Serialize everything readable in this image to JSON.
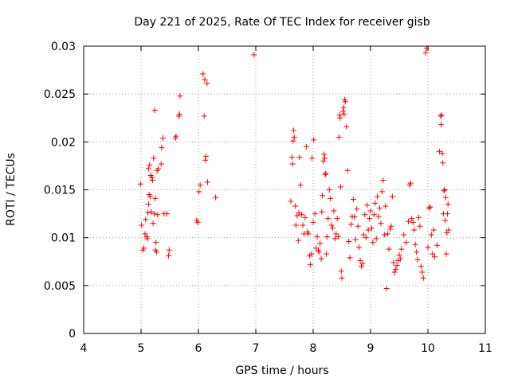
{
  "chart_data": {
    "type": "scatter",
    "title": "Day 221 of 2025, Rate Of TEC Index for receiver gisb",
    "xlabel": "GPS time / hours",
    "ylabel": "ROTI / TECUs",
    "xlim": [
      4,
      11
    ],
    "ylim": [
      0,
      0.03
    ],
    "xticks": [
      "4",
      "5",
      "6",
      "7",
      "8",
      "9",
      "10",
      "11"
    ],
    "yticks": [
      "0",
      "0.005",
      "0.01",
      "0.015",
      "0.02",
      "0.025",
      "0.03"
    ],
    "grid": true,
    "marker": "+",
    "color": "#ff0000",
    "series": [
      {
        "name": "ROTI",
        "points": [
          [
            4.99,
            0.0156
          ],
          [
            5.01,
            0.0113
          ],
          [
            5.03,
            0.0087
          ],
          [
            5.05,
            0.0089
          ],
          [
            5.07,
            0.0104
          ],
          [
            5.08,
            0.0119
          ],
          [
            5.1,
            0.0101
          ],
          [
            5.11,
            0.0099
          ],
          [
            5.12,
            0.0126
          ],
          [
            5.13,
            0.0135
          ],
          [
            5.13,
            0.0172
          ],
          [
            5.14,
            0.0145
          ],
          [
            5.15,
            0.0176
          ],
          [
            5.16,
            0.0143
          ],
          [
            5.17,
            0.0165
          ],
          [
            5.18,
            0.0127
          ],
          [
            5.19,
            0.0163
          ],
          [
            5.2,
            0.016
          ],
          [
            5.21,
            0.0115
          ],
          [
            5.22,
            0.0183
          ],
          [
            5.23,
            0.0125
          ],
          [
            5.24,
            0.0233
          ],
          [
            5.25,
            0.0087
          ],
          [
            5.25,
            0.0141
          ],
          [
            5.26,
            0.0095
          ],
          [
            5.27,
            0.0085
          ],
          [
            5.28,
            0.017
          ],
          [
            5.29,
            0.0124
          ],
          [
            5.3,
            0.0172
          ],
          [
            5.35,
            0.0177
          ],
          [
            5.36,
            0.0194
          ],
          [
            5.38,
            0.0204
          ],
          [
            5.4,
            0.0125
          ],
          [
            5.45,
            0.0125
          ],
          [
            5.48,
            0.0081
          ],
          [
            5.49,
            0.0087
          ],
          [
            5.6,
            0.0204
          ],
          [
            5.61,
            0.0206
          ],
          [
            5.66,
            0.0227
          ],
          [
            5.67,
            0.0229
          ],
          [
            5.68,
            0.0248
          ],
          [
            5.97,
            0.0118
          ],
          [
            5.99,
            0.0116
          ],
          [
            6.01,
            0.0148
          ],
          [
            6.03,
            0.0155
          ],
          [
            6.08,
            0.0271
          ],
          [
            6.1,
            0.0227
          ],
          [
            6.11,
            0.0265
          ],
          [
            6.12,
            0.0181
          ],
          [
            6.13,
            0.0185
          ],
          [
            6.15,
            0.0261
          ],
          [
            6.16,
            0.0158
          ],
          [
            6.3,
            0.0142
          ],
          [
            6.97,
            0.0291
          ],
          [
            7.61,
            0.0138
          ],
          [
            7.63,
            0.0184
          ],
          [
            7.64,
            0.0177
          ],
          [
            7.65,
            0.0201
          ],
          [
            7.66,
            0.0212
          ],
          [
            7.67,
            0.0205
          ],
          [
            7.69,
            0.0133
          ],
          [
            7.7,
            0.0113
          ],
          [
            7.72,
            0.0123
          ],
          [
            7.74,
            0.0097
          ],
          [
            7.75,
            0.0126
          ],
          [
            7.76,
            0.0184
          ],
          [
            7.78,
            0.0155
          ],
          [
            7.8,
            0.0124
          ],
          [
            7.82,
            0.0113
          ],
          [
            7.84,
            0.0104
          ],
          [
            7.86,
            0.0121
          ],
          [
            7.88,
            0.0195
          ],
          [
            7.9,
            0.0106
          ],
          [
            7.92,
            0.0104
          ],
          [
            7.94,
            0.0081
          ],
          [
            7.95,
            0.0072
          ],
          [
            7.97,
            0.0083
          ],
          [
            7.98,
            0.0183
          ],
          [
            8.0,
            0.0116
          ],
          [
            8.01,
            0.0202
          ],
          [
            8.03,
            0.0125
          ],
          [
            8.05,
            0.0089
          ],
          [
            8.07,
            0.0101
          ],
          [
            8.09,
            0.0087
          ],
          [
            8.1,
            0.0085
          ],
          [
            8.12,
            0.0094
          ],
          [
            8.14,
            0.0078
          ],
          [
            8.15,
            0.0127
          ],
          [
            8.16,
            0.0144
          ],
          [
            8.18,
            0.018
          ],
          [
            8.19,
            0.0187
          ],
          [
            8.2,
            0.0183
          ],
          [
            8.21,
            0.0166
          ],
          [
            8.22,
            0.0167
          ],
          [
            8.23,
            0.0083
          ],
          [
            8.24,
            0.0101
          ],
          [
            8.26,
            0.012
          ],
          [
            8.28,
            0.015
          ],
          [
            8.3,
            0.0141
          ],
          [
            8.32,
            0.0113
          ],
          [
            8.34,
            0.011
          ],
          [
            8.36,
            0.0128
          ],
          [
            8.38,
            0.0099
          ],
          [
            8.4,
            0.0104
          ],
          [
            8.42,
            0.012
          ],
          [
            8.44,
            0.0101
          ],
          [
            8.45,
            0.0205
          ],
          [
            8.46,
            0.0228
          ],
          [
            8.47,
            0.0225
          ],
          [
            8.48,
            0.0153
          ],
          [
            8.49,
            0.0065
          ],
          [
            8.5,
            0.0058
          ],
          [
            8.52,
            0.0232
          ],
          [
            8.53,
            0.0236
          ],
          [
            8.54,
            0.0229
          ],
          [
            8.55,
            0.0244
          ],
          [
            8.56,
            0.0242
          ],
          [
            8.58,
            0.0216
          ],
          [
            8.6,
            0.017
          ],
          [
            8.62,
            0.0096
          ],
          [
            8.64,
            0.0079
          ],
          [
            8.66,
            0.0114
          ],
          [
            8.68,
            0.0122
          ],
          [
            8.7,
            0.014
          ],
          [
            8.72,
            0.0122
          ],
          [
            8.74,
            0.0098
          ],
          [
            8.76,
            0.013
          ],
          [
            8.78,
            0.0112
          ],
          [
            8.8,
            0.009
          ],
          [
            8.82,
            0.0076
          ],
          [
            8.84,
            0.007
          ],
          [
            8.86,
            0.0073
          ],
          [
            8.88,
            0.0103
          ],
          [
            8.9,
            0.0124
          ],
          [
            8.92,
            0.01
          ],
          [
            8.94,
            0.0134
          ],
          [
            8.96,
            0.0108
          ],
          [
            8.98,
            0.012
          ],
          [
            9.0,
            0.0128
          ],
          [
            9.02,
            0.011
          ],
          [
            9.04,
            0.0095
          ],
          [
            9.06,
            0.0124
          ],
          [
            9.08,
            0.0136
          ],
          [
            9.1,
            0.0099
          ],
          [
            9.12,
            0.0143
          ],
          [
            9.14,
            0.0122
          ],
          [
            9.16,
            0.0131
          ],
          [
            9.18,
            0.0115
          ],
          [
            9.2,
            0.0148
          ],
          [
            9.22,
            0.016
          ],
          [
            9.24,
            0.0103
          ],
          [
            9.26,
            0.0133
          ],
          [
            9.28,
            0.0047
          ],
          [
            9.3,
            0.0104
          ],
          [
            9.32,
            0.0088
          ],
          [
            9.34,
            0.0109
          ],
          [
            9.36,
            0.0112
          ],
          [
            9.38,
            0.0143
          ],
          [
            9.4,
            0.0074
          ],
          [
            9.42,
            0.0064
          ],
          [
            9.44,
            0.0067
          ],
          [
            9.46,
            0.0071
          ],
          [
            9.48,
            0.0076
          ],
          [
            9.5,
            0.0082
          ],
          [
            9.52,
            0.0078
          ],
          [
            9.54,
            0.0088
          ],
          [
            9.58,
            0.0103
          ],
          [
            9.62,
            0.0095
          ],
          [
            9.66,
            0.0117
          ],
          [
            9.68,
            0.0155
          ],
          [
            9.7,
            0.0157
          ],
          [
            9.72,
            0.012
          ],
          [
            9.74,
            0.0116
          ],
          [
            9.76,
            0.0108
          ],
          [
            9.78,
            0.0093
          ],
          [
            9.8,
            0.0085
          ],
          [
            9.82,
            0.0077
          ],
          [
            9.84,
            0.0121
          ],
          [
            9.86,
            0.0112
          ],
          [
            9.88,
            0.007
          ],
          [
            9.9,
            0.0064
          ],
          [
            9.92,
            0.0058
          ],
          [
            9.96,
            0.0293
          ],
          [
            9.98,
            0.0298
          ],
          [
            10.0,
            0.009
          ],
          [
            10.02,
            0.0131
          ],
          [
            10.04,
            0.0132
          ],
          [
            10.06,
            0.0103
          ],
          [
            10.08,
            0.0083
          ],
          [
            10.1,
            0.0108
          ],
          [
            10.12,
            0.008
          ],
          [
            10.16,
            0.0092
          ],
          [
            10.2,
            0.019
          ],
          [
            10.22,
            0.0227
          ],
          [
            10.23,
            0.0218
          ],
          [
            10.24,
            0.0228
          ],
          [
            10.25,
            0.0188
          ],
          [
            10.26,
            0.0178
          ],
          [
            10.27,
            0.0125
          ],
          [
            10.28,
            0.0149
          ],
          [
            10.29,
            0.015
          ],
          [
            10.3,
            0.0118
          ],
          [
            10.31,
            0.0142
          ],
          [
            10.32,
            0.0083
          ],
          [
            10.33,
            0.0105
          ],
          [
            10.34,
            0.0125
          ],
          [
            10.35,
            0.0135
          ],
          [
            10.36,
            0.0108
          ]
        ]
      }
    ]
  }
}
